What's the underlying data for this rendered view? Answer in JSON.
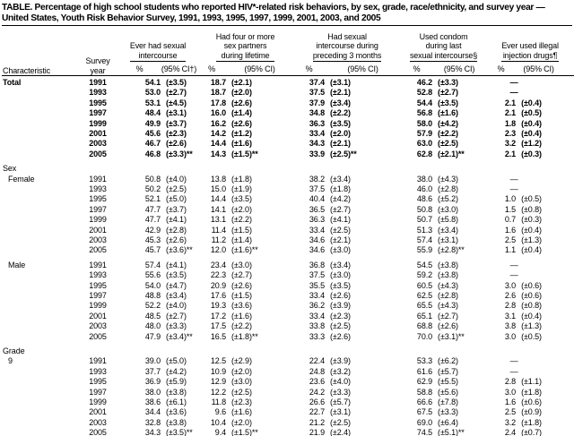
{
  "title": {
    "line1": "TABLE. Percentage of high school students who reported HIV*-related risk behaviors, by sex, grade, race/ethnicity, and survey year —",
    "line2": "United States, Youth Risk Behavior Survey, 1991, 1993, 1995, 1997, 1999, 2001, 2003, and 2005"
  },
  "header": {
    "characteristic": "Characteristic",
    "survey_year_line1": "Survey",
    "survey_year_line2": "year",
    "groups": [
      {
        "lines": [
          "Ever had sexual",
          "intercourse"
        ],
        "pct": "%",
        "ci": "(95% CI†)"
      },
      {
        "lines": [
          "Had four or more",
          "sex partners",
          "during lifetime"
        ],
        "pct": "%",
        "ci": "(95% CI)"
      },
      {
        "lines": [
          "Had sexual",
          "intercourse during",
          "preceding 3 months"
        ],
        "pct": "%",
        "ci": "(95% CI)"
      },
      {
        "lines": [
          "Used condom",
          "during last",
          "sexual intercourse§"
        ],
        "pct": "%",
        "ci": "(95% CI)"
      },
      {
        "lines": [
          "Ever used illegal",
          "injection drugs¶"
        ],
        "pct": "%",
        "ci": "(95% CI)"
      }
    ]
  },
  "table": {
    "dash": "—",
    "blocks": [
      {
        "kind": "rows",
        "label": "Total",
        "bold": true,
        "indent": 0,
        "rows": [
          {
            "y": "1991",
            "c": [
              [
                "54.1",
                "(±3.5)"
              ],
              [
                "18.7",
                "(±2.1)"
              ],
              [
                "37.4",
                "(±3.1)"
              ],
              [
                "46.2",
                "(±3.3)"
              ],
              null
            ]
          },
          {
            "y": "1993",
            "c": [
              [
                "53.0",
                "(±2.7)"
              ],
              [
                "18.7",
                "(±2.0)"
              ],
              [
                "37.5",
                "(±2.1)"
              ],
              [
                "52.8",
                "(±2.7)"
              ],
              null
            ]
          },
          {
            "y": "1995",
            "c": [
              [
                "53.1",
                "(±4.5)"
              ],
              [
                "17.8",
                "(±2.6)"
              ],
              [
                "37.9",
                "(±3.4)"
              ],
              [
                "54.4",
                "(±3.5)"
              ],
              [
                "2.1",
                "(±0.4)"
              ]
            ]
          },
          {
            "y": "1997",
            "c": [
              [
                "48.4",
                "(±3.1)"
              ],
              [
                "16.0",
                "(±1.4)"
              ],
              [
                "34.8",
                "(±2.2)"
              ],
              [
                "56.8",
                "(±1.6)"
              ],
              [
                "2.1",
                "(±0.5)"
              ]
            ]
          },
          {
            "y": "1999",
            "c": [
              [
                "49.9",
                "(±3.7)"
              ],
              [
                "16.2",
                "(±2.6)"
              ],
              [
                "36.3",
                "(±3.5)"
              ],
              [
                "58.0",
                "(±4.2)"
              ],
              [
                "1.8",
                "(±0.4)"
              ]
            ]
          },
          {
            "y": "2001",
            "c": [
              [
                "45.6",
                "(±2.3)"
              ],
              [
                "14.2",
                "(±1.2)"
              ],
              [
                "33.4",
                "(±2.0)"
              ],
              [
                "57.9",
                "(±2.2)"
              ],
              [
                "2.3",
                "(±0.4)"
              ]
            ]
          },
          {
            "y": "2003",
            "c": [
              [
                "46.7",
                "(±2.6)"
              ],
              [
                "14.4",
                "(±1.6)"
              ],
              [
                "34.3",
                "(±2.1)"
              ],
              [
                "63.0",
                "(±2.5)"
              ],
              [
                "3.2",
                "(±1.2)"
              ]
            ]
          },
          {
            "y": "2005",
            "c": [
              [
                "46.8",
                "(±3.3)**"
              ],
              [
                "14.3",
                "(±1.5)**"
              ],
              [
                "33.9",
                "(±2.5)**"
              ],
              [
                "62.8",
                "(±2.1)**"
              ],
              [
                "2.1",
                "(±0.3)"
              ]
            ]
          }
        ]
      },
      {
        "kind": "gap"
      },
      {
        "kind": "label",
        "text": "Sex"
      },
      {
        "kind": "rows",
        "label": "Female",
        "bold": false,
        "indent": 1,
        "rows": [
          {
            "y": "1991",
            "c": [
              [
                "50.8",
                "(±4.0)"
              ],
              [
                "13.8",
                "(±1.8)"
              ],
              [
                "38.2",
                "(±3.4)"
              ],
              [
                "38.0",
                "(±4.3)"
              ],
              null
            ]
          },
          {
            "y": "1993",
            "c": [
              [
                "50.2",
                "(±2.5)"
              ],
              [
                "15.0",
                "(±1.9)"
              ],
              [
                "37.5",
                "(±1.8)"
              ],
              [
                "46.0",
                "(±2.8)"
              ],
              null
            ]
          },
          {
            "y": "1995",
            "c": [
              [
                "52.1",
                "(±5.0)"
              ],
              [
                "14.4",
                "(±3.5)"
              ],
              [
                "40.4",
                "(±4.2)"
              ],
              [
                "48.6",
                "(±5.2)"
              ],
              [
                "1.0",
                "(±0.5)"
              ]
            ]
          },
          {
            "y": "1997",
            "c": [
              [
                "47.7",
                "(±3.7)"
              ],
              [
                "14.1",
                "(±2.0)"
              ],
              [
                "36.5",
                "(±2.7)"
              ],
              [
                "50.8",
                "(±3.0)"
              ],
              [
                "1.5",
                "(±0.8)"
              ]
            ]
          },
          {
            "y": "1999",
            "c": [
              [
                "47.7",
                "(±4.1)"
              ],
              [
                "13.1",
                "(±2.2)"
              ],
              [
                "36.3",
                "(±4.1)"
              ],
              [
                "50.7",
                "(±5.8)"
              ],
              [
                "0.7",
                "(±0.3)"
              ]
            ]
          },
          {
            "y": "2001",
            "c": [
              [
                "42.9",
                "(±2.8)"
              ],
              [
                "11.4",
                "(±1.5)"
              ],
              [
                "33.4",
                "(±2.5)"
              ],
              [
                "51.3",
                "(±3.4)"
              ],
              [
                "1.6",
                "(±0.4)"
              ]
            ]
          },
          {
            "y": "2003",
            "c": [
              [
                "45.3",
                "(±2.6)"
              ],
              [
                "11.2",
                "(±1.4)"
              ],
              [
                "34.6",
                "(±2.1)"
              ],
              [
                "57.4",
                "(±3.1)"
              ],
              [
                "2.5",
                "(±1.3)"
              ]
            ]
          },
          {
            "y": "2005",
            "c": [
              [
                "45.7",
                "(±3.6)**"
              ],
              [
                "12.0",
                "(±1.6)**"
              ],
              [
                "34.6",
                "(±3.0)"
              ],
              [
                "55.9",
                "(±2.8)**"
              ],
              [
                "1.1",
                "(±0.4)"
              ]
            ]
          }
        ]
      },
      {
        "kind": "gap"
      },
      {
        "kind": "rows",
        "label": "Male",
        "bold": false,
        "indent": 1,
        "rows": [
          {
            "y": "1991",
            "c": [
              [
                "57.4",
                "(±4.1)"
              ],
              [
                "23.4",
                "(±3.0)"
              ],
              [
                "36.8",
                "(±3.4)"
              ],
              [
                "54.5",
                "(±3.8)"
              ],
              null
            ]
          },
          {
            "y": "1993",
            "c": [
              [
                "55.6",
                "(±3.5)"
              ],
              [
                "22.3",
                "(±2.7)"
              ],
              [
                "37.5",
                "(±3.0)"
              ],
              [
                "59.2",
                "(±3.8)"
              ],
              null
            ]
          },
          {
            "y": "1995",
            "c": [
              [
                "54.0",
                "(±4.7)"
              ],
              [
                "20.9",
                "(±2.6)"
              ],
              [
                "35.5",
                "(±3.5)"
              ],
              [
                "60.5",
                "(±4.3)"
              ],
              [
                "3.0",
                "(±0.6)"
              ]
            ]
          },
          {
            "y": "1997",
            "c": [
              [
                "48.8",
                "(±3.4)"
              ],
              [
                "17.6",
                "(±1.5)"
              ],
              [
                "33.4",
                "(±2.6)"
              ],
              [
                "62.5",
                "(±2.8)"
              ],
              [
                "2.6",
                "(±0.6)"
              ]
            ]
          },
          {
            "y": "1999",
            "c": [
              [
                "52.2",
                "(±4.0)"
              ],
              [
                "19.3",
                "(±3.6)"
              ],
              [
                "36.2",
                "(±3.9)"
              ],
              [
                "65.5",
                "(±4.3)"
              ],
              [
                "2.8",
                "(±0.8)"
              ]
            ]
          },
          {
            "y": "2001",
            "c": [
              [
                "48.5",
                "(±2.7)"
              ],
              [
                "17.2",
                "(±1.6)"
              ],
              [
                "33.4",
                "(±2.3)"
              ],
              [
                "65.1",
                "(±2.7)"
              ],
              [
                "3.1",
                "(±0.4)"
              ]
            ]
          },
          {
            "y": "2003",
            "c": [
              [
                "48.0",
                "(±3.3)"
              ],
              [
                "17.5",
                "(±2.2)"
              ],
              [
                "33.8",
                "(±2.5)"
              ],
              [
                "68.8",
                "(±2.6)"
              ],
              [
                "3.8",
                "(±1.3)"
              ]
            ]
          },
          {
            "y": "2005",
            "c": [
              [
                "47.9",
                "(±3.4)**"
              ],
              [
                "16.5",
                "(±1.8)**"
              ],
              [
                "33.3",
                "(±2.6)"
              ],
              [
                "70.0",
                "(±3.1)**"
              ],
              [
                "3.0",
                "(±0.5)"
              ]
            ]
          }
        ]
      },
      {
        "kind": "gap"
      },
      {
        "kind": "label",
        "text": "Grade"
      },
      {
        "kind": "rows",
        "label": "9",
        "bold": false,
        "indent": 1,
        "rows": [
          {
            "y": "1991",
            "c": [
              [
                "39.0",
                "(±5.0)"
              ],
              [
                "12.5",
                "(±2.9)"
              ],
              [
                "22.4",
                "(±3.9)"
              ],
              [
                "53.3",
                "(±6.2)"
              ],
              null
            ]
          },
          {
            "y": "1993",
            "c": [
              [
                "37.7",
                "(±4.2)"
              ],
              [
                "10.9",
                "(±2.0)"
              ],
              [
                "24.8",
                "(±3.2)"
              ],
              [
                "61.6",
                "(±5.7)"
              ],
              null
            ]
          },
          {
            "y": "1995",
            "c": [
              [
                "36.9",
                "(±5.9)"
              ],
              [
                "12.9",
                "(±3.0)"
              ],
              [
                "23.6",
                "(±4.0)"
              ],
              [
                "62.9",
                "(±5.5)"
              ],
              [
                "2.8",
                "(±1.1)"
              ]
            ]
          },
          {
            "y": "1997",
            "c": [
              [
                "38.0",
                "(±3.8)"
              ],
              [
                "12.2",
                "(±2.5)"
              ],
              [
                "24.2",
                "(±3.3)"
              ],
              [
                "58.8",
                "(±5.6)"
              ],
              [
                "3.0",
                "(±1.8)"
              ]
            ]
          },
          {
            "y": "1999",
            "c": [
              [
                "38.6",
                "(±6.1)"
              ],
              [
                "11.8",
                "(±2.3)"
              ],
              [
                "26.6",
                "(±5.7)"
              ],
              [
                "66.6",
                "(±7.8)"
              ],
              [
                "1.6",
                "(±0.6)"
              ]
            ]
          },
          {
            "y": "2001",
            "c": [
              [
                "34.4",
                "(±3.6)"
              ],
              [
                "9.6",
                "(±1.6)"
              ],
              [
                "22.7",
                "(±3.1)"
              ],
              [
                "67.5",
                "(±3.3)"
              ],
              [
                "2.5",
                "(±0.9)"
              ]
            ]
          },
          {
            "y": "2003",
            "c": [
              [
                "32.8",
                "(±3.8)"
              ],
              [
                "10.4",
                "(±2.0)"
              ],
              [
                "21.2",
                "(±2.5)"
              ],
              [
                "69.0",
                "(±6.4)"
              ],
              [
                "3.2",
                "(±1.8)"
              ]
            ]
          },
          {
            "y": "2005",
            "c": [
              [
                "34.3",
                "(±3.5)**"
              ],
              [
                "9.4",
                "(±1.5)**"
              ],
              [
                "21.9",
                "(±2.4)"
              ],
              [
                "74.5",
                "(±5.1)**"
              ],
              [
                "2.4",
                "(±0.7)"
              ]
            ]
          }
        ]
      }
    ]
  }
}
